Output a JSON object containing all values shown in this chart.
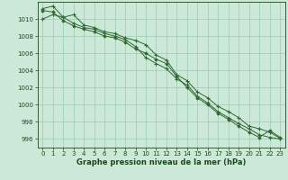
{
  "hours": [
    0,
    1,
    2,
    3,
    4,
    5,
    6,
    7,
    8,
    9,
    10,
    11,
    12,
    13,
    14,
    15,
    16,
    17,
    18,
    19,
    20,
    21,
    22,
    23
  ],
  "line1": [
    1011.2,
    1011.5,
    1010.2,
    1010.5,
    1009.3,
    1009.0,
    1008.5,
    1008.3,
    1007.8,
    1007.5,
    1007.0,
    1005.8,
    1005.2,
    1003.5,
    1002.8,
    1001.5,
    1000.8,
    999.8,
    999.2,
    998.5,
    997.5,
    997.2,
    996.8,
    996.1
  ],
  "line2": [
    1010.0,
    1010.5,
    1010.2,
    1009.5,
    1009.0,
    1008.8,
    1008.3,
    1008.0,
    1007.6,
    1006.8,
    1005.5,
    1004.8,
    1004.2,
    1003.0,
    1002.3,
    1001.0,
    1000.2,
    999.2,
    998.5,
    997.8,
    997.2,
    996.5,
    996.2,
    996.0
  ],
  "line3": [
    1011.0,
    1010.8,
    1009.8,
    1009.2,
    1008.8,
    1008.5,
    1008.0,
    1007.8,
    1007.3,
    1006.5,
    1006.0,
    1005.3,
    1004.8,
    1003.3,
    1002.0,
    1000.8,
    1000.0,
    999.0,
    998.3,
    997.5,
    996.8,
    996.2,
    997.0,
    996.2
  ],
  "line_color": "#2d6a2d",
  "marker_color": "#2d6a2d",
  "bg_color": "#cce8d8",
  "grid_color": "#99ccb3",
  "title_color": "#1a4a1a",
  "xlabel": "Graphe pression niveau de la mer (hPa)",
  "ylim": [
    995.0,
    1012.0
  ],
  "yticks": [
    996,
    998,
    1000,
    1002,
    1004,
    1006,
    1008,
    1010
  ],
  "xticks": [
    0,
    1,
    2,
    3,
    4,
    5,
    6,
    7,
    8,
    9,
    10,
    11,
    12,
    13,
    14,
    15,
    16,
    17,
    18,
    19,
    20,
    21,
    22,
    23
  ]
}
